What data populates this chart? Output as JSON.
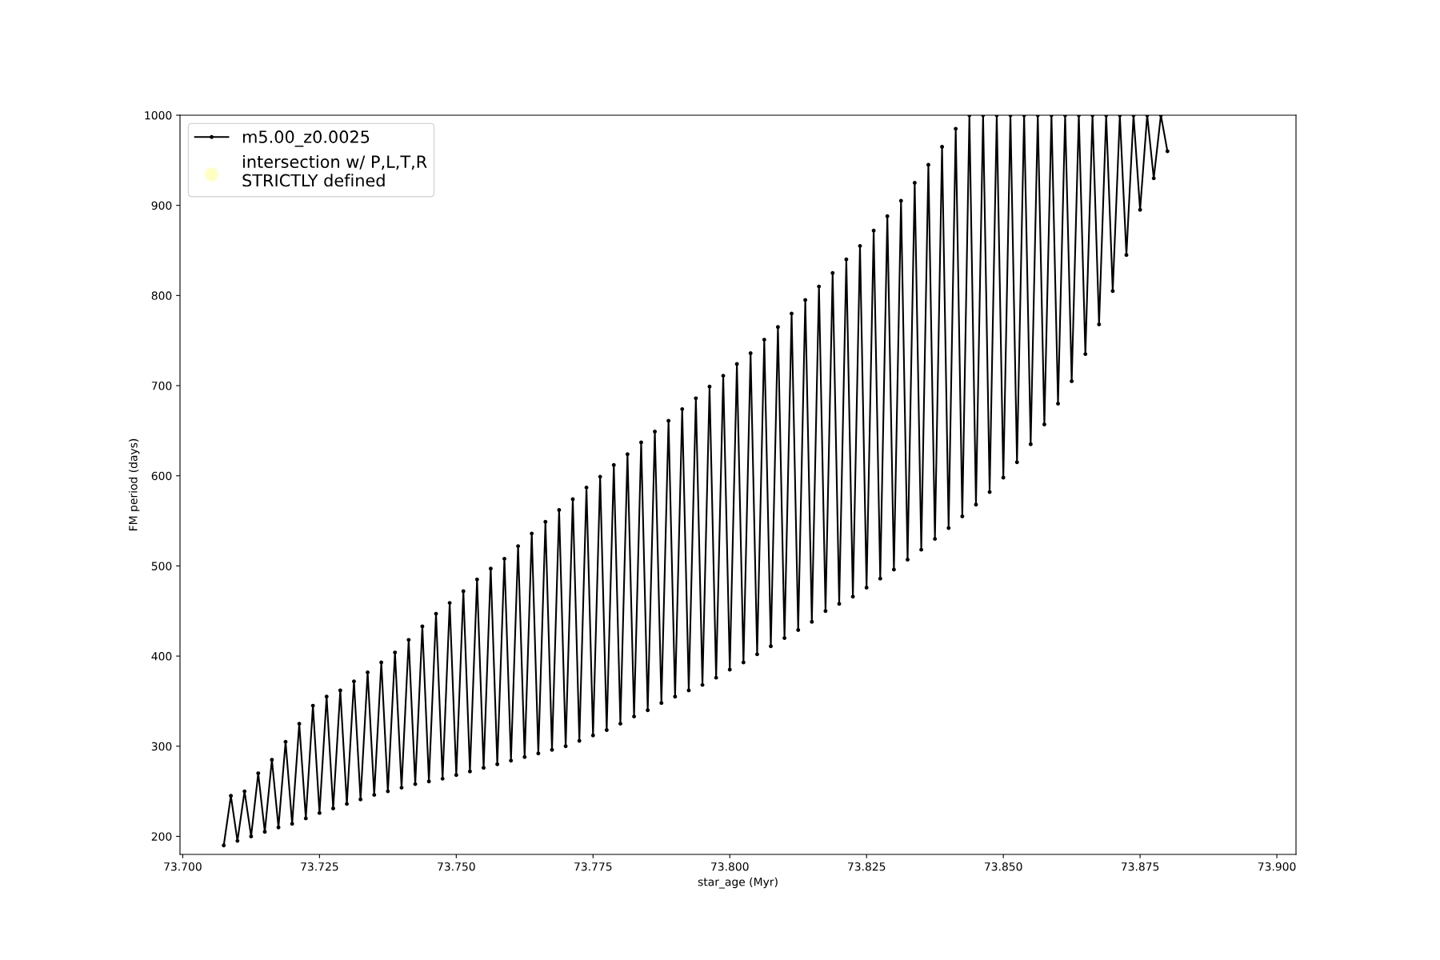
{
  "chart_data": {
    "type": "line",
    "xlabel": "star_age (Myr)",
    "ylabel": "FM period (days)",
    "xlim": [
      73.6995,
      73.9035
    ],
    "ylim": [
      180,
      1000
    ],
    "xticks": [
      {
        "value": 73.7,
        "label": "73.700"
      },
      {
        "value": 73.725,
        "label": "73.725"
      },
      {
        "value": 73.75,
        "label": "73.750"
      },
      {
        "value": 73.775,
        "label": "73.775"
      },
      {
        "value": 73.8,
        "label": "73.800"
      },
      {
        "value": 73.825,
        "label": "73.825"
      },
      {
        "value": 73.85,
        "label": "73.850"
      },
      {
        "value": 73.875,
        "label": "73.875"
      },
      {
        "value": 73.9,
        "label": "73.900"
      }
    ],
    "yticks": [
      200,
      300,
      400,
      500,
      600,
      700,
      800,
      900,
      1000
    ],
    "grid": false,
    "legend": "top left",
    "series": [
      {
        "name": "m5.00_z0.0025",
        "color": "#000000",
        "marker": "circle",
        "line_style": "solid",
        "x": [
          73.7075,
          73.7088,
          73.71,
          73.7113,
          73.7125,
          73.7138,
          73.715,
          73.7163,
          73.7175,
          73.7188,
          73.72,
          73.7213,
          73.7225,
          73.7238,
          73.725,
          73.7263,
          73.7275,
          73.7288,
          73.73,
          73.7313,
          73.7325,
          73.7338,
          73.735,
          73.7363,
          73.7375,
          73.7388,
          73.74,
          73.7413,
          73.7425,
          73.7438,
          73.745,
          73.7463,
          73.7475,
          73.7488,
          73.75,
          73.7513,
          73.7525,
          73.7538,
          73.755,
          73.7563,
          73.7575,
          73.7588,
          73.76,
          73.7613,
          73.7625,
          73.7638,
          73.765,
          73.7663,
          73.7675,
          73.7688,
          73.77,
          73.7713,
          73.7725,
          73.7738,
          73.775,
          73.7763,
          73.7775,
          73.7788,
          73.78,
          73.7813,
          73.7825,
          73.7838,
          73.785,
          73.7863,
          73.7875,
          73.7888,
          73.79,
          73.7913,
          73.7925,
          73.7938,
          73.795,
          73.7963,
          73.7975,
          73.7988,
          73.8,
          73.8013,
          73.8025,
          73.8038,
          73.805,
          73.8063,
          73.8075,
          73.8088,
          73.81,
          73.8113,
          73.8125,
          73.8138,
          73.815,
          73.8163,
          73.8175,
          73.8188,
          73.82,
          73.8213,
          73.8225,
          73.8238,
          73.825,
          73.8263,
          73.8275,
          73.8288,
          73.83,
          73.8313,
          73.8325,
          73.8338,
          73.835,
          73.8363,
          73.8375,
          73.8388,
          73.84,
          73.8413,
          73.8425,
          73.8438,
          73.845,
          73.8463,
          73.8475,
          73.8488,
          73.85,
          73.8513,
          73.8525,
          73.8538,
          73.855,
          73.8563,
          73.8575,
          73.8588,
          73.86,
          73.8613,
          73.8625,
          73.8638,
          73.865,
          73.8663,
          73.8675,
          73.8688,
          73.87,
          73.8713,
          73.8725,
          73.8738,
          73.875,
          73.8763,
          73.8775,
          73.8788,
          73.88
        ],
        "values": [
          190,
          245,
          195,
          250,
          200,
          270,
          205,
          285,
          210,
          305,
          214,
          325,
          220,
          345,
          226,
          355,
          231,
          362,
          236,
          372,
          241,
          382,
          246,
          393,
          250,
          404,
          254,
          418,
          258,
          433,
          261,
          447,
          264,
          459,
          268,
          472,
          272,
          485,
          276,
          497,
          280,
          508,
          284,
          522,
          288,
          536,
          292,
          549,
          296,
          562,
          300,
          574,
          306,
          587,
          312,
          599,
          318,
          612,
          325,
          624,
          333,
          637,
          340,
          649,
          348,
          661,
          355,
          674,
          362,
          686,
          368,
          699,
          376,
          711,
          385,
          724,
          393,
          736,
          402,
          751,
          411,
          765,
          420,
          780,
          429,
          795,
          438,
          810,
          450,
          825,
          458,
          840,
          466,
          855,
          476,
          872,
          486,
          888,
          496,
          905,
          507,
          925,
          518,
          945,
          530,
          965,
          542,
          985,
          555,
          1000,
          568,
          1000,
          582,
          1000,
          598,
          1000,
          615,
          1000,
          635,
          1000,
          657,
          1000,
          680,
          1000,
          705,
          1000,
          735,
          1000,
          768,
          1000,
          805,
          1000,
          845,
          1000,
          895,
          1000,
          930,
          1000,
          960
        ]
      },
      {
        "name": "intersection w/ P,L,T,R\nSTRICTLY defined",
        "type": "scatter",
        "color": "#ffffb3"
      }
    ]
  }
}
